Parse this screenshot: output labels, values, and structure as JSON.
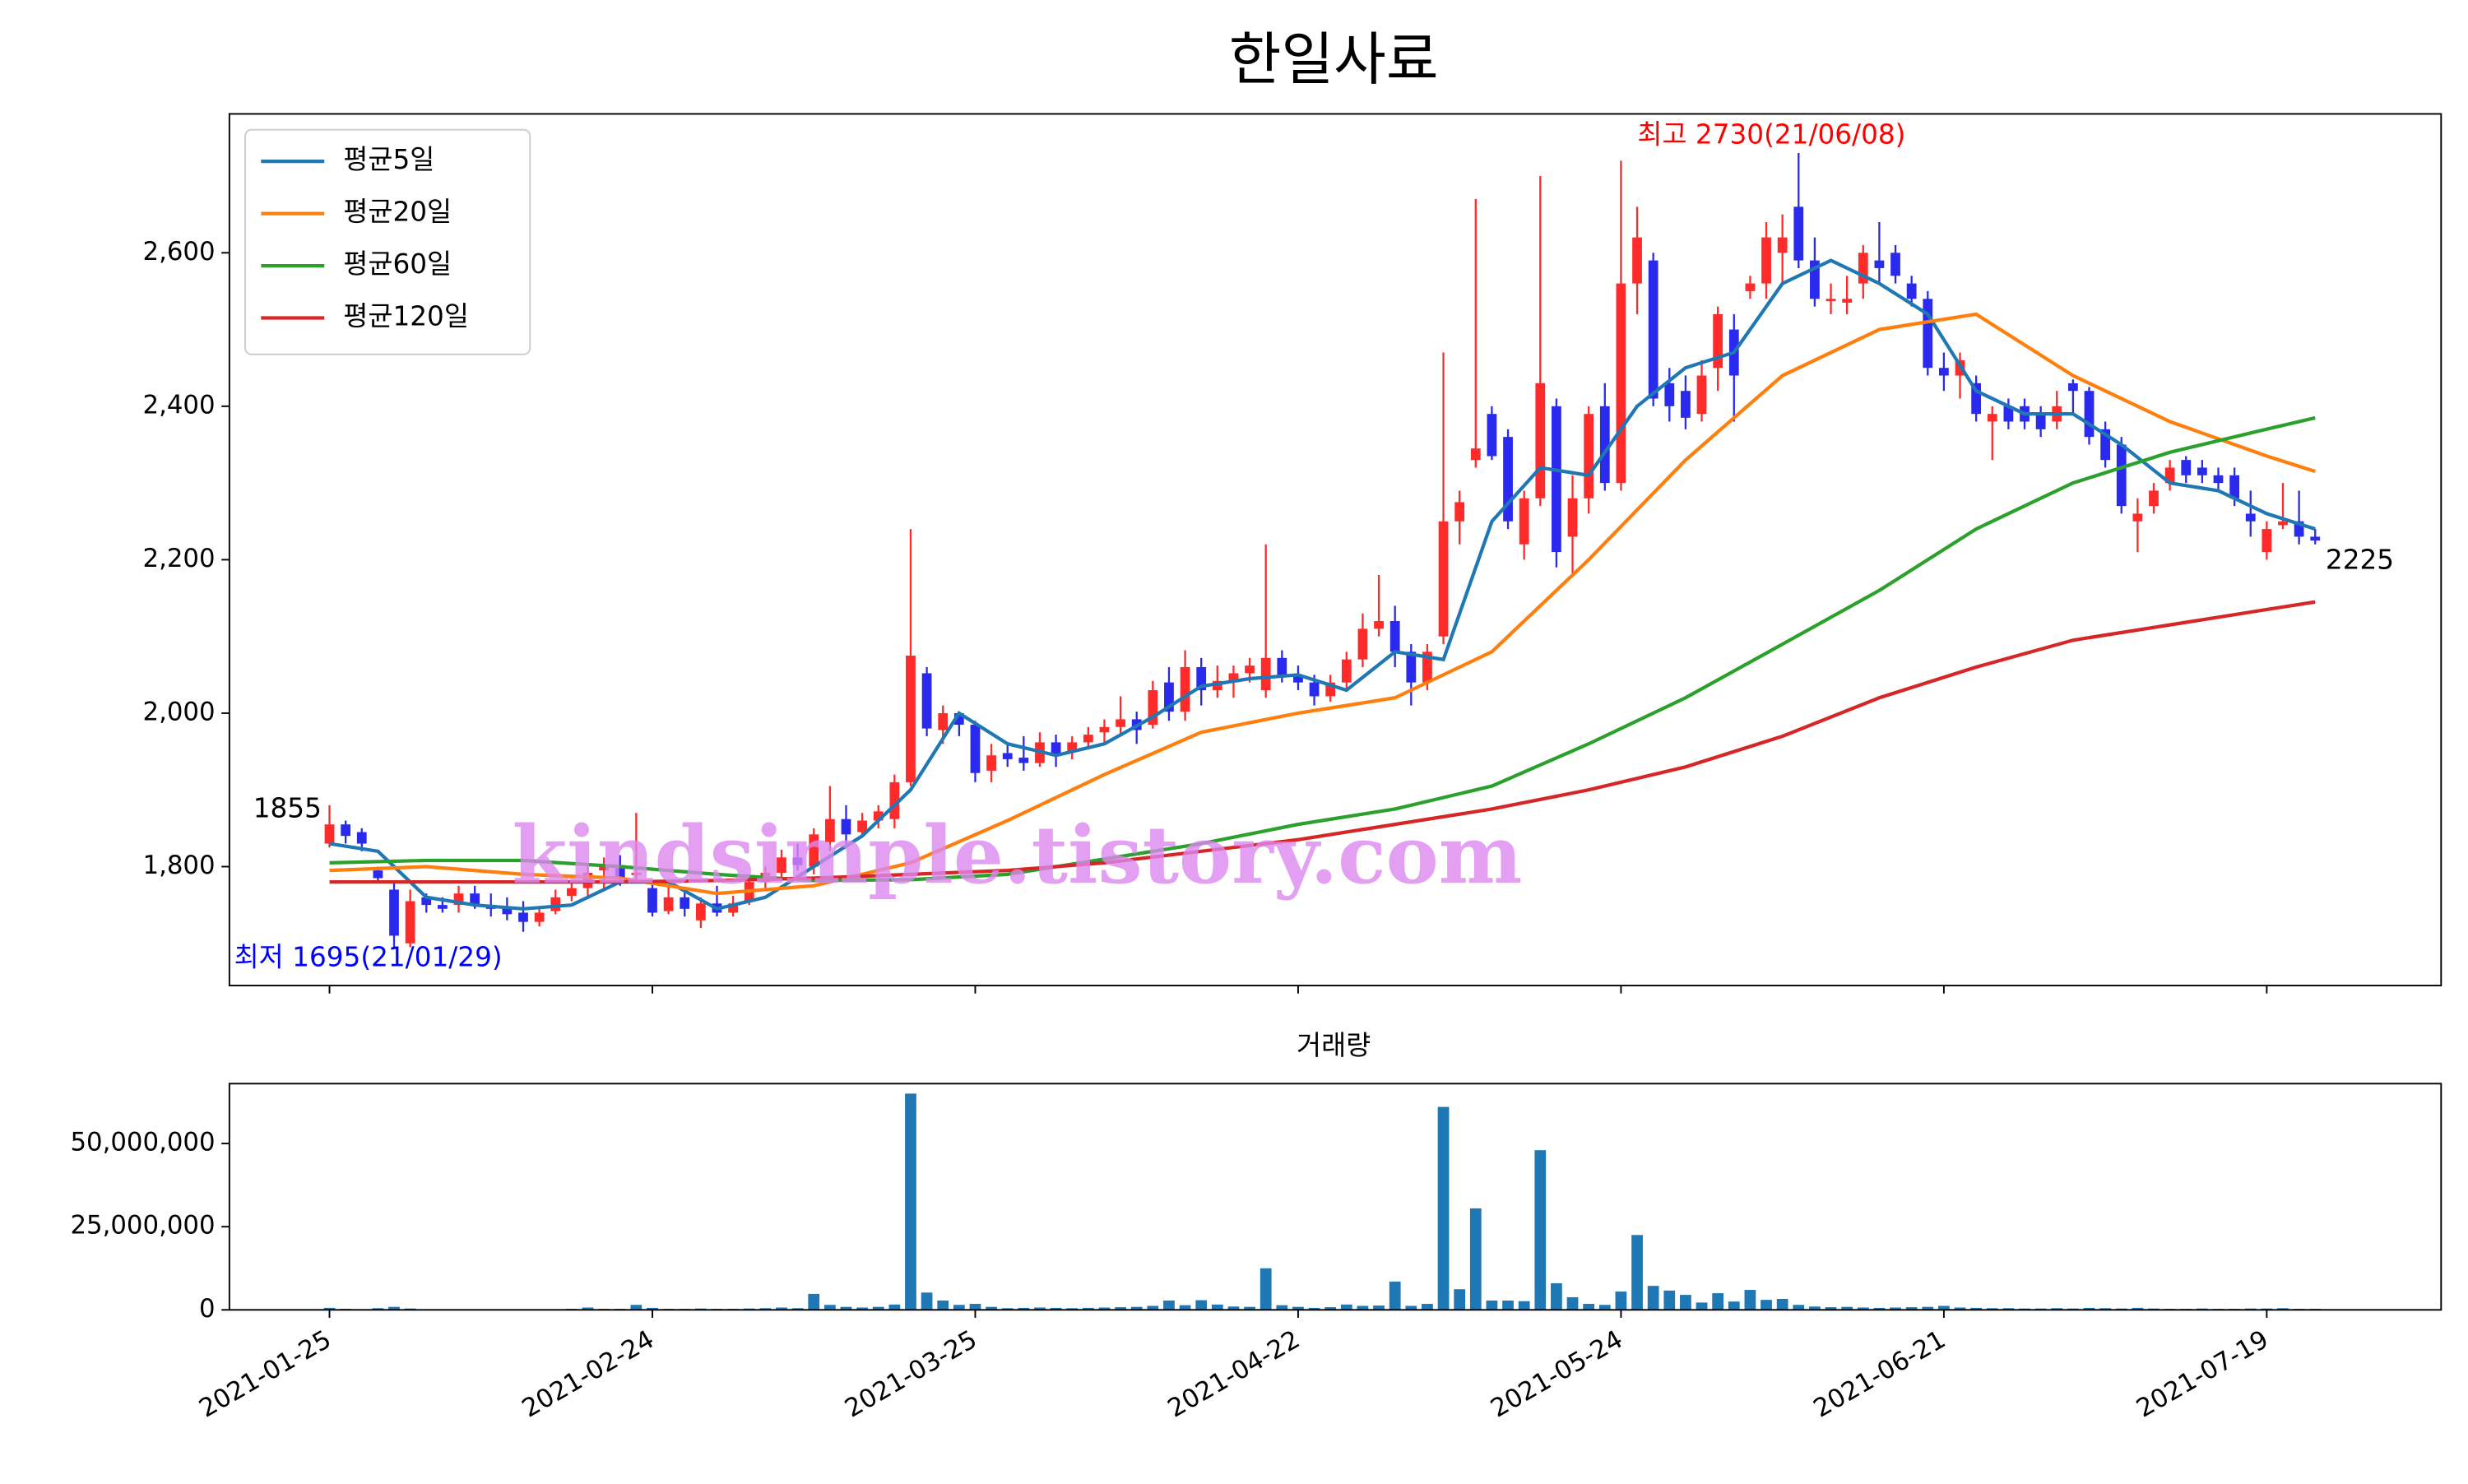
{
  "chart_data": [
    {
      "type": "candlestick",
      "title": "한일사료",
      "up_color": "#ff2a2a",
      "down_color": "#2a2aee",
      "ohlc": [
        [
          1830,
          1880,
          1825,
          1855
        ],
        [
          1855,
          1860,
          1830,
          1840
        ],
        [
          1845,
          1850,
          1820,
          1830
        ],
        [
          1795,
          1800,
          1780,
          1785
        ],
        [
          1770,
          1780,
          1695,
          1710
        ],
        [
          1700,
          1770,
          1695,
          1755
        ],
        [
          1760,
          1765,
          1740,
          1750
        ],
        [
          1750,
          1760,
          1740,
          1745
        ],
        [
          1750,
          1775,
          1740,
          1765
        ],
        [
          1765,
          1775,
          1745,
          1750
        ],
        [
          1750,
          1765,
          1735,
          1745
        ],
        [
          1745,
          1760,
          1730,
          1738
        ],
        [
          1740,
          1755,
          1715,
          1728
        ],
        [
          1728,
          1745,
          1722,
          1740
        ],
        [
          1742,
          1770,
          1738,
          1760
        ],
        [
          1762,
          1780,
          1755,
          1772
        ],
        [
          1772,
          1800,
          1760,
          1792
        ],
        [
          1795,
          1812,
          1772,
          1802
        ],
        [
          1802,
          1815,
          1775,
          1786
        ],
        [
          1790,
          1870,
          1780,
          1792
        ],
        [
          1772,
          1780,
          1735,
          1740
        ],
        [
          1742,
          1775,
          1738,
          1760
        ],
        [
          1760,
          1770,
          1735,
          1745
        ],
        [
          1730,
          1760,
          1720,
          1752
        ],
        [
          1752,
          1775,
          1735,
          1740
        ],
        [
          1740,
          1762,
          1735,
          1752
        ],
        [
          1755,
          1790,
          1750,
          1780
        ],
        [
          1780,
          1800,
          1770,
          1792
        ],
        [
          1792,
          1822,
          1785,
          1812
        ],
        [
          1812,
          1830,
          1795,
          1802
        ],
        [
          1800,
          1850,
          1790,
          1842
        ],
        [
          1832,
          1905,
          1820,
          1862
        ],
        [
          1862,
          1880,
          1830,
          1842
        ],
        [
          1845,
          1870,
          1840,
          1860
        ],
        [
          1860,
          1880,
          1850,
          1872
        ],
        [
          1862,
          1920,
          1850,
          1910
        ],
        [
          1910,
          2240,
          1905,
          2075
        ],
        [
          2052,
          2060,
          1970,
          1980
        ],
        [
          1978,
          2010,
          1960,
          2000
        ],
        [
          2000,
          2002,
          1970,
          1985
        ],
        [
          1985,
          1990,
          1910,
          1922
        ],
        [
          1925,
          1960,
          1910,
          1945
        ],
        [
          1948,
          1960,
          1930,
          1940
        ],
        [
          1942,
          1970,
          1925,
          1935
        ],
        [
          1935,
          1975,
          1930,
          1962
        ],
        [
          1962,
          1972,
          1930,
          1945
        ],
        [
          1950,
          1970,
          1940,
          1962
        ],
        [
          1962,
          1982,
          1955,
          1972
        ],
        [
          1975,
          1992,
          1960,
          1982
        ],
        [
          1982,
          2022,
          1970,
          1992
        ],
        [
          1992,
          2002,
          1960,
          1978
        ],
        [
          1985,
          2042,
          1980,
          2030
        ],
        [
          2040,
          2060,
          1990,
          2002
        ],
        [
          2002,
          2082,
          1990,
          2060
        ],
        [
          2060,
          2072,
          2010,
          2030
        ],
        [
          2030,
          2062,
          2020,
          2042
        ],
        [
          2042,
          2062,
          2020,
          2052
        ],
        [
          2052,
          2072,
          2040,
          2062
        ],
        [
          2030,
          2220,
          2020,
          2072
        ],
        [
          2072,
          2082,
          2040,
          2050
        ],
        [
          2050,
          2062,
          2030,
          2040
        ],
        [
          2040,
          2050,
          2010,
          2022
        ],
        [
          2022,
          2050,
          2015,
          2040
        ],
        [
          2040,
          2080,
          2030,
          2070
        ],
        [
          2070,
          2130,
          2060,
          2110
        ],
        [
          2110,
          2180,
          2100,
          2120
        ],
        [
          2120,
          2140,
          2060,
          2080
        ],
        [
          2080,
          2090,
          2010,
          2040
        ],
        [
          2040,
          2090,
          2030,
          2080
        ],
        [
          2100,
          2470,
          2090,
          2250
        ],
        [
          2250,
          2290,
          2220,
          2275
        ],
        [
          2330,
          2670,
          2320,
          2345
        ],
        [
          2390,
          2400,
          2330,
          2335
        ],
        [
          2360,
          2370,
          2240,
          2250
        ],
        [
          2220,
          2290,
          2200,
          2280
        ],
        [
          2280,
          2700,
          2270,
          2430
        ],
        [
          2400,
          2410,
          2190,
          2210
        ],
        [
          2230,
          2310,
          2180,
          2280
        ],
        [
          2280,
          2400,
          2260,
          2390
        ],
        [
          2400,
          2430,
          2290,
          2300
        ],
        [
          2300,
          2720,
          2290,
          2560
        ],
        [
          2560,
          2660,
          2520,
          2620
        ],
        [
          2590,
          2600,
          2400,
          2410
        ],
        [
          2430,
          2450,
          2380,
          2400
        ],
        [
          2420,
          2440,
          2370,
          2385
        ],
        [
          2390,
          2460,
          2380,
          2440
        ],
        [
          2450,
          2530,
          2420,
          2520
        ],
        [
          2500,
          2520,
          2380,
          2440
        ],
        [
          2550,
          2570,
          2540,
          2560
        ],
        [
          2560,
          2640,
          2540,
          2620
        ],
        [
          2600,
          2650,
          2560,
          2620
        ],
        [
          2660,
          2730,
          2580,
          2590
        ],
        [
          2590,
          2620,
          2530,
          2540
        ],
        [
          2540,
          2560,
          2520,
          2540
        ],
        [
          2535,
          2570,
          2520,
          2540
        ],
        [
          2560,
          2610,
          2540,
          2600
        ],
        [
          2590,
          2640,
          2560,
          2580
        ],
        [
          2600,
          2610,
          2560,
          2570
        ],
        [
          2560,
          2570,
          2530,
          2540
        ],
        [
          2540,
          2550,
          2440,
          2450
        ],
        [
          2450,
          2470,
          2420,
          2440
        ],
        [
          2440,
          2470,
          2410,
          2460
        ],
        [
          2430,
          2440,
          2380,
          2390
        ],
        [
          2380,
          2400,
          2330,
          2390
        ],
        [
          2400,
          2410,
          2370,
          2380
        ],
        [
          2400,
          2410,
          2370,
          2380
        ],
        [
          2390,
          2400,
          2360,
          2370
        ],
        [
          2380,
          2420,
          2370,
          2400
        ],
        [
          2430,
          2435,
          2390,
          2420
        ],
        [
          2420,
          2425,
          2350,
          2360
        ],
        [
          2370,
          2380,
          2320,
          2330
        ],
        [
          2350,
          2360,
          2260,
          2270
        ],
        [
          2250,
          2280,
          2210,
          2260
        ],
        [
          2270,
          2300,
          2260,
          2290
        ],
        [
          2300,
          2330,
          2290,
          2320
        ],
        [
          2330,
          2335,
          2300,
          2310
        ],
        [
          2320,
          2330,
          2300,
          2310
        ],
        [
          2310,
          2320,
          2290,
          2300
        ],
        [
          2310,
          2320,
          2270,
          2280
        ],
        [
          2260,
          2290,
          2230,
          2250
        ],
        [
          2210,
          2250,
          2200,
          2240
        ],
        [
          2245,
          2300,
          2240,
          2250
        ],
        [
          2250,
          2290,
          2220,
          2230
        ],
        [
          2230,
          2240,
          2220,
          2225
        ]
      ],
      "series": [
        {
          "name": "평균5일",
          "color": "#1f77b4",
          "x": [
            0,
            3,
            6,
            9,
            12,
            15,
            18,
            21,
            24,
            27,
            30,
            33,
            36,
            39,
            42,
            45,
            48,
            51,
            54,
            57,
            60,
            63,
            66,
            69,
            72,
            75,
            78,
            81,
            84,
            87,
            90,
            93,
            96,
            99,
            102,
            105,
            108,
            111,
            114,
            117,
            120,
            123
          ],
          "values": [
            1830,
            1820,
            1760,
            1750,
            1745,
            1750,
            1780,
            1780,
            1745,
            1760,
            1800,
            1840,
            1900,
            2000,
            1960,
            1945,
            1960,
            1995,
            2035,
            2045,
            2050,
            2030,
            2080,
            2070,
            2250,
            2320,
            2310,
            2400,
            2450,
            2470,
            2560,
            2590,
            2560,
            2520,
            2420,
            2390,
            2390,
            2350,
            2300,
            2290,
            2260,
            2240
          ]
        },
        {
          "name": "평균20일",
          "color": "#ff7f0e",
          "x": [
            0,
            6,
            12,
            18,
            24,
            30,
            36,
            42,
            48,
            54,
            60,
            66,
            72,
            78,
            84,
            90,
            96,
            102,
            108,
            114,
            120,
            123
          ],
          "values": [
            1795,
            1800,
            1790,
            1785,
            1765,
            1775,
            1805,
            1860,
            1920,
            1975,
            2000,
            2020,
            2080,
            2200,
            2330,
            2440,
            2500,
            2520,
            2440,
            2380,
            2335,
            2315
          ]
        },
        {
          "name": "평균60일",
          "color": "#2ca02c",
          "x": [
            0,
            6,
            12,
            18,
            24,
            30,
            36,
            42,
            48,
            54,
            60,
            66,
            72,
            78,
            84,
            90,
            96,
            102,
            108,
            114,
            120,
            123
          ],
          "values": [
            1805,
            1808,
            1808,
            1800,
            1790,
            1782,
            1783,
            1790,
            1810,
            1830,
            1855,
            1875,
            1905,
            1960,
            2020,
            2090,
            2160,
            2240,
            2300,
            2340,
            2370,
            2385
          ]
        },
        {
          "name": "평균120일",
          "color": "#d62728",
          "x": [
            0,
            6,
            12,
            18,
            24,
            30,
            36,
            42,
            48,
            54,
            60,
            66,
            72,
            78,
            84,
            90,
            96,
            102,
            108,
            114,
            120,
            123
          ],
          "values": [
            1780,
            1780,
            1780,
            1780,
            1782,
            1785,
            1790,
            1795,
            1805,
            1820,
            1835,
            1855,
            1875,
            1900,
            1930,
            1970,
            2020,
            2060,
            2095,
            2115,
            2135,
            2145
          ]
        }
      ],
      "xlim": [
        -6.2,
        130.8
      ],
      "xticks": [
        0,
        20,
        40,
        60,
        80,
        100,
        120
      ],
      "ylim": [
        1645,
        2781
      ],
      "yticks": [
        {
          "value": 1800,
          "label": "1,800"
        },
        {
          "value": 2000,
          "label": "2,000"
        },
        {
          "value": 2200,
          "label": "2,200"
        },
        {
          "value": 2400,
          "label": "2,400"
        },
        {
          "value": 2600,
          "label": "2,600"
        }
      ],
      "legend": "upper left",
      "annotations": [
        {
          "text": "최고 2730(21/06/08)",
          "color": "#ff0000"
        },
        {
          "text": "최저 1695(21/01/29)",
          "color": "#0000ff"
        },
        {
          "text": "1855",
          "color": "#000000"
        },
        {
          "text": "2225",
          "color": "#000000"
        },
        {
          "text": "kindsimple.tistory.com",
          "color": "#dd88ee"
        }
      ]
    },
    {
      "type": "bar",
      "title": "거래량",
      "color": "#1f77b4",
      "values": [
        600000,
        300000,
        200000,
        500000,
        900000,
        400000,
        200000,
        200000,
        150000,
        150000,
        150000,
        150000,
        150000,
        150000,
        200000,
        300000,
        700000,
        300000,
        300000,
        1500000,
        600000,
        300000,
        300000,
        400000,
        300000,
        300000,
        400000,
        500000,
        700000,
        500000,
        4800000,
        1500000,
        900000,
        700000,
        900000,
        1600000,
        65000000,
        5200000,
        2800000,
        1500000,
        1800000,
        900000,
        500000,
        600000,
        700000,
        600000,
        500000,
        600000,
        700000,
        800000,
        900000,
        1200000,
        2800000,
        1400000,
        2900000,
        1600000,
        1000000,
        900000,
        12500000,
        1400000,
        900000,
        600000,
        800000,
        1600000,
        1200000,
        1300000,
        8500000,
        1200000,
        1800000,
        61000000,
        6200000,
        30500000,
        2800000,
        2800000,
        2600000,
        48000000,
        8000000,
        3800000,
        1800000,
        1500000,
        5500000,
        22500000,
        7200000,
        5800000,
        4500000,
        2200000,
        5000000,
        2500000,
        6000000,
        3000000,
        3300000,
        1500000,
        1000000,
        800000,
        900000,
        700000,
        600000,
        700000,
        800000,
        900000,
        1200000,
        700000,
        600000,
        500000,
        500000,
        400000,
        400000,
        500000,
        400000,
        600000,
        500000,
        400000,
        600000,
        400000,
        300000,
        300000,
        400000,
        300000,
        300000,
        400000,
        400000,
        500000,
        300000,
        300000
      ],
      "xlim": [
        -6.2,
        130.8
      ],
      "xticks": [
        {
          "value": 0,
          "label": "2021-01-25"
        },
        {
          "value": 20,
          "label": "2021-02-24"
        },
        {
          "value": 40,
          "label": "2021-03-25"
        },
        {
          "value": 60,
          "label": "2021-04-22"
        },
        {
          "value": 80,
          "label": "2021-05-24"
        },
        {
          "value": 100,
          "label": "2021-06-21"
        },
        {
          "value": 120,
          "label": "2021-07-19"
        }
      ],
      "ylim": [
        0,
        68000000
      ],
      "yticks": [
        0,
        {
          "value": 25000000,
          "label": "25,000,000"
        },
        {
          "value": 50000000,
          "label": "50,000,000"
        }
      ]
    }
  ]
}
